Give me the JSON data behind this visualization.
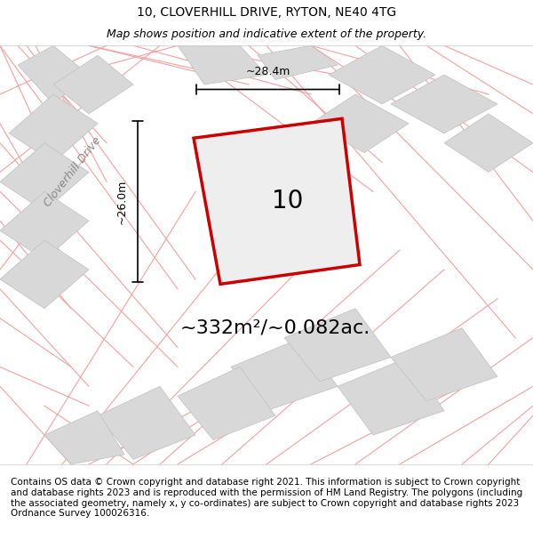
{
  "title": "10, CLOVERHILL DRIVE, RYTON, NE40 4TG",
  "subtitle": "Map shows position and indicative extent of the property.",
  "area_label": "~332m²/~0.082ac.",
  "property_number": "10",
  "dim_width": "~28.4m",
  "dim_height": "~26.0m",
  "road_label": "Cloverhill Drive",
  "footer": "Contains OS data © Crown copyright and database right 2021. This information is subject to Crown copyright and database rights 2023 and is reproduced with the permission of HM Land Registry. The polygons (including the associated geometry, namely x, y co-ordinates) are subject to Crown copyright and database rights 2023 Ordnance Survey 100026316.",
  "bg_color": "#f0f0f0",
  "map_bg": "#f5f5f5",
  "property_fill": "#e8e8e8",
  "property_edge": "#cc0000",
  "neighbor_fill": "#d8d8d8",
  "neighbor_edge": "#d8d8d8",
  "road_line_color": "#f5a0a0",
  "title_fontsize": 10,
  "subtitle_fontsize": 9,
  "footer_fontsize": 7.5,
  "header_bg": "#ffffff",
  "footer_bg": "#ffffff"
}
